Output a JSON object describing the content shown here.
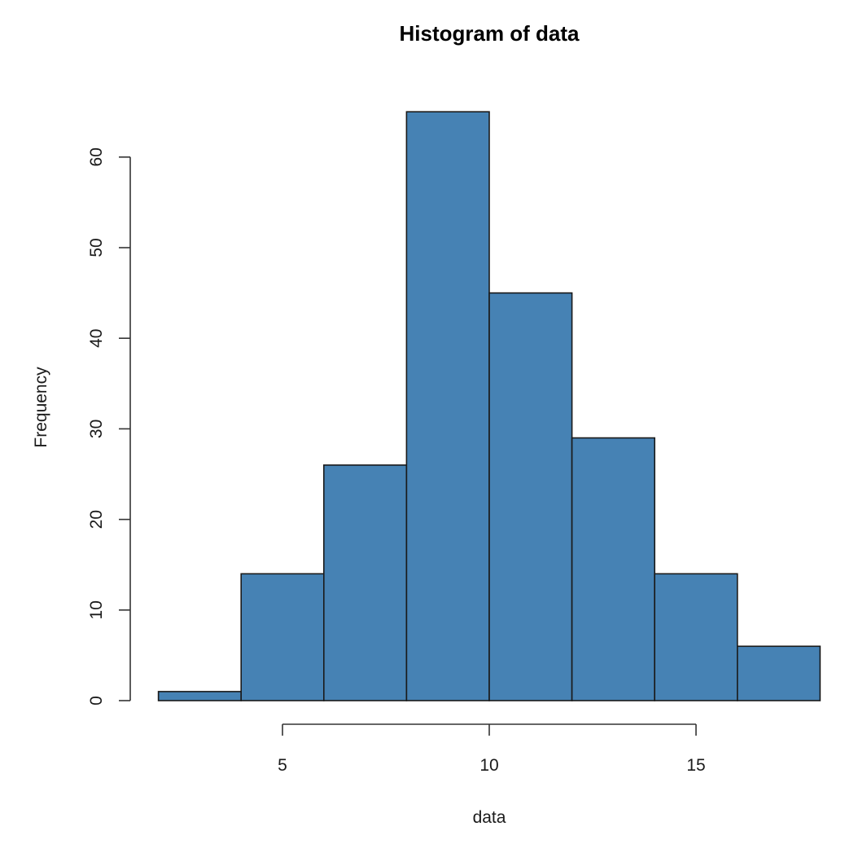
{
  "chart_data": {
    "type": "bar",
    "subtype": "histogram",
    "title": "Histogram of data",
    "xlabel": "data",
    "ylabel": "Frequency",
    "bins": [
      {
        "start": 2,
        "end": 4,
        "count": 1
      },
      {
        "start": 4,
        "end": 6,
        "count": 14
      },
      {
        "start": 6,
        "end": 8,
        "count": 26
      },
      {
        "start": 8,
        "end": 10,
        "count": 65
      },
      {
        "start": 10,
        "end": 12,
        "count": 45
      },
      {
        "start": 12,
        "end": 14,
        "count": 29
      },
      {
        "start": 14,
        "end": 16,
        "count": 14
      },
      {
        "start": 16,
        "end": 18,
        "count": 6
      }
    ],
    "categories": [
      "2-4",
      "4-6",
      "6-8",
      "8-10",
      "10-12",
      "12-14",
      "14-16",
      "16-18"
    ],
    "values": [
      1,
      14,
      26,
      65,
      45,
      29,
      14,
      6
    ],
    "x_ticks": [
      5,
      10,
      15
    ],
    "y_ticks": [
      0,
      10,
      20,
      30,
      40,
      50,
      60
    ],
    "xlim": [
      2,
      18
    ],
    "ylim": [
      0,
      65
    ],
    "grid": false,
    "legend": null,
    "colors": {
      "bar_fill": "#4682B4",
      "bar_border": "#1a1a1a",
      "axis": "#333333"
    }
  }
}
